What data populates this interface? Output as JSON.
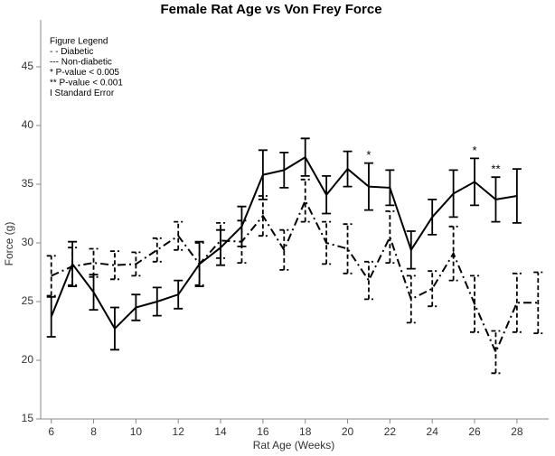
{
  "chart_data": {
    "type": "line",
    "title": "Female Rat Age vs Von Frey Force",
    "x_label": "Rat Age (Weeks)",
    "y_label": "Force (g)",
    "legend_lines": [
      "Figure Legend",
      "- - Diabetic",
      "--- Non-diabetic",
      "*   P-value < 0.005",
      "** P-value < 0.001",
      "I   Standard Error"
    ],
    "xlim": [
      5.5,
      29.5
    ],
    "xticks": [
      6,
      8,
      10,
      12,
      14,
      16,
      18,
      20,
      22,
      24,
      26,
      28
    ],
    "ylim": [
      15,
      49
    ],
    "yticks": [
      15,
      20,
      25,
      30,
      35,
      40,
      45
    ],
    "series": [
      {
        "name": "Non-diabetic",
        "color": "#000000",
        "dash": "solid",
        "x": [
          6,
          7,
          8,
          9,
          10,
          11,
          12,
          13,
          14,
          15,
          16,
          17,
          18,
          19,
          20,
          21,
          22,
          23,
          24,
          25,
          26,
          27,
          28
        ],
        "values": [
          23.7,
          28.2,
          25.8,
          22.7,
          24.5,
          25.0,
          25.6,
          28.2,
          29.6,
          31.4,
          35.8,
          36.2,
          37.3,
          34.1,
          36.3,
          34.8,
          34.7,
          29.4,
          32.2,
          34.2,
          35.2,
          33.7,
          34.0
        ],
        "errors": [
          1.7,
          1.9,
          1.5,
          1.8,
          1.1,
          1.2,
          1.2,
          1.9,
          1.5,
          1.7,
          2.1,
          1.5,
          1.6,
          1.6,
          1.5,
          2.0,
          1.5,
          1.6,
          1.5,
          2.0,
          2.0,
          1.9,
          2.3
        ]
      },
      {
        "name": "Diabetic",
        "color": "#000000",
        "dash": "dashdot",
        "x": [
          6,
          7,
          8,
          9,
          10,
          11,
          12,
          13,
          14,
          15,
          16,
          17,
          18,
          19,
          20,
          21,
          22,
          23,
          24,
          25,
          26,
          27,
          28,
          29
        ],
        "values": [
          27.2,
          28.0,
          28.3,
          28.1,
          28.2,
          29.4,
          30.6,
          28.2,
          30.2,
          30.1,
          32.3,
          29.4,
          33.6,
          30.0,
          29.5,
          26.8,
          30.5,
          25.2,
          26.1,
          29.1,
          24.8,
          20.7,
          24.9,
          24.9
        ],
        "errors": [
          1.7,
          1.6,
          1.2,
          1.2,
          1.0,
          1.0,
          1.2,
          1.8,
          1.5,
          1.8,
          1.7,
          1.7,
          1.8,
          1.8,
          2.1,
          1.6,
          2.2,
          2.0,
          1.5,
          2.3,
          2.4,
          1.8,
          2.5,
          2.6
        ]
      }
    ],
    "annotations": [
      {
        "text": "*",
        "x": 21
      },
      {
        "text": "*",
        "x": 26
      },
      {
        "text": "**",
        "x": 27
      }
    ]
  }
}
